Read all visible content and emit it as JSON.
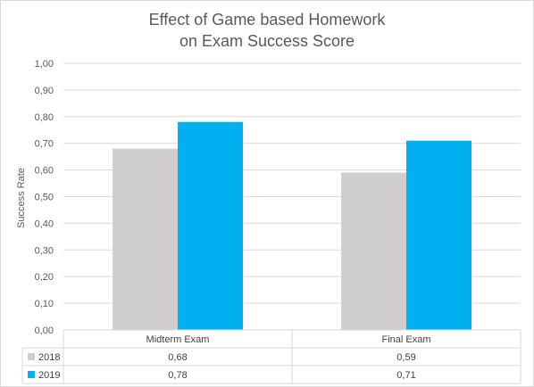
{
  "chart_data": {
    "type": "bar",
    "title_lines": [
      "Effect of Game based Homework",
      "on Exam Success Score"
    ],
    "xlabel": "",
    "ylabel": "Success Rate",
    "categories": [
      "Midterm Exam",
      "Final Exam"
    ],
    "series": [
      {
        "name": "2018",
        "values": [
          0.68,
          0.59
        ],
        "labels": [
          "0,68",
          "0,59"
        ],
        "color": "#d0cece"
      },
      {
        "name": "2019",
        "values": [
          0.78,
          0.71
        ],
        "labels": [
          "0,78",
          "0,71"
        ],
        "color": "#00b0f0"
      }
    ],
    "ylim": [
      0,
      1
    ],
    "yticks": [
      0,
      0.1,
      0.2,
      0.3,
      0.4,
      0.5,
      0.6,
      0.7,
      0.8,
      0.9,
      1.0
    ],
    "ytick_labels": [
      "0,00",
      "0,10",
      "0,20",
      "0,30",
      "0,40",
      "0,50",
      "0,60",
      "0,70",
      "0,80",
      "0,90",
      "1,00"
    ],
    "grid": true,
    "legend": "data-table"
  }
}
